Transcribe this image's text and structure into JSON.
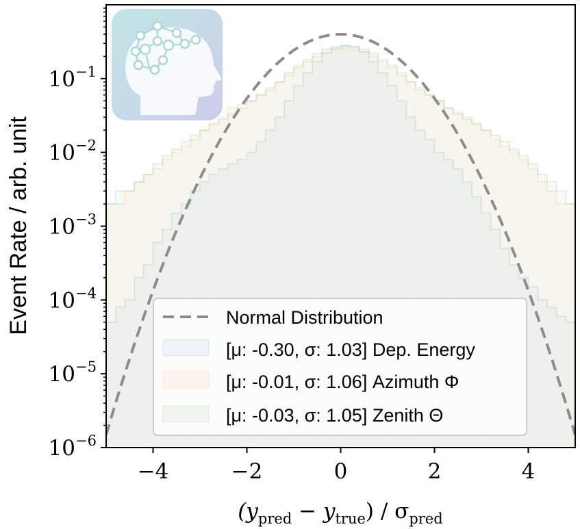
{
  "chart_data": {
    "type": "line",
    "title": "",
    "xlabel_parts": [
      "(y",
      "pred",
      " − y",
      "true",
      ") / σ",
      "pred"
    ],
    "ylabel": "Event Rate / arb. unit",
    "xlim": [
      -5,
      5
    ],
    "ylim": [
      1e-06,
      1
    ],
    "yscale": "log",
    "xticks": [
      -4,
      -2,
      0,
      2,
      4
    ],
    "xtick_labels": [
      "−4",
      "−2",
      "0",
      "2",
      "4"
    ],
    "yticks": [
      1e-06,
      1e-05,
      0.0001,
      0.001,
      0.01,
      0.1
    ],
    "ytick_exponents": [
      "−6",
      "−5",
      "−4",
      "−3",
      "−2",
      "−1"
    ],
    "ytick_base": "10",
    "legend_position": "lower-right",
    "bins": [
      -5,
      -4.8,
      -4.6,
      -4.4,
      -4.2,
      -4,
      -3.8,
      -3.6,
      -3.4,
      -3.2,
      -3,
      -2.8,
      -2.6,
      -2.4,
      -2.2,
      -2,
      -1.8,
      -1.6,
      -1.4,
      -1.2,
      -1,
      -0.8,
      -0.6,
      -0.4,
      -0.2,
      0,
      0.2,
      0.4,
      0.6,
      0.8,
      1,
      1.2,
      1.4,
      1.6,
      1.8,
      2,
      2.2,
      2.4,
      2.6,
      2.8,
      3,
      3.2,
      3.4,
      3.6,
      3.8,
      4,
      4.2,
      4.4,
      4.6,
      4.8,
      5
    ],
    "series": [
      {
        "name": "Normal Distribution",
        "kind": "curve",
        "mu": 0,
        "sigma": 1,
        "color": "#8c8c8c"
      },
      {
        "name": "[μ: -0.30, σ: 1.03] Dep. Energy",
        "kind": "histogram",
        "color": "#1f77b4",
        "values": [
          5e-05,
          8e-05,
          0.0001,
          0.0002,
          0.0003,
          0.0006,
          0.0009,
          0.0015,
          0.002,
          0.003,
          0.004,
          0.005,
          0.006,
          0.007,
          0.008,
          0.01,
          0.014,
          0.02,
          0.03,
          0.05,
          0.08,
          0.12,
          0.17,
          0.22,
          0.26,
          0.28,
          0.27,
          0.23,
          0.17,
          0.12,
          0.08,
          0.05,
          0.03,
          0.02,
          0.015,
          0.01,
          0.008,
          0.006,
          0.004,
          0.0025,
          0.0015,
          0.0009,
          0.0005,
          0.0003,
          0.0002,
          0.00015,
          0.0001,
          8e-05,
          6e-05,
          5e-05
        ]
      },
      {
        "name": "[μ: -0.01, σ: 1.06] Azimuth Φ",
        "kind": "histogram",
        "color": "#ff7f0e",
        "values": [
          0.002,
          0.002,
          0.003,
          0.004,
          0.005,
          0.006,
          0.008,
          0.01,
          0.012,
          0.015,
          0.02,
          0.025,
          0.03,
          0.04,
          0.045,
          0.05,
          0.06,
          0.07,
          0.09,
          0.11,
          0.14,
          0.17,
          0.2,
          0.23,
          0.25,
          0.26,
          0.25,
          0.23,
          0.2,
          0.17,
          0.14,
          0.11,
          0.09,
          0.07,
          0.06,
          0.05,
          0.04,
          0.035,
          0.03,
          0.025,
          0.02,
          0.015,
          0.012,
          0.01,
          0.008,
          0.006,
          0.004,
          0.003,
          0.002,
          0.002
        ]
      },
      {
        "name": "[μ: -0.03, σ: 1.05] Zenith Θ",
        "kind": "histogram",
        "color": "#2ca02c",
        "values": [
          0.002,
          0.003,
          0.003,
          0.004,
          0.005,
          0.007,
          0.009,
          0.011,
          0.014,
          0.017,
          0.02,
          0.024,
          0.028,
          0.033,
          0.04,
          0.05,
          0.06,
          0.075,
          0.09,
          0.12,
          0.15,
          0.18,
          0.22,
          0.25,
          0.27,
          0.28,
          0.27,
          0.25,
          0.22,
          0.18,
          0.15,
          0.12,
          0.09,
          0.075,
          0.06,
          0.05,
          0.04,
          0.033,
          0.028,
          0.024,
          0.02,
          0.017,
          0.014,
          0.011,
          0.009,
          0.007,
          0.005,
          0.004,
          0.003,
          0.002
        ]
      }
    ]
  },
  "colors": {
    "curve": "#8c8c8c",
    "legend_border": "#cccccc",
    "axes": "#000000"
  },
  "logo": {
    "icon": "brain-head-icon",
    "colors": [
      "#b9e4e4",
      "#c7c7e6"
    ]
  }
}
